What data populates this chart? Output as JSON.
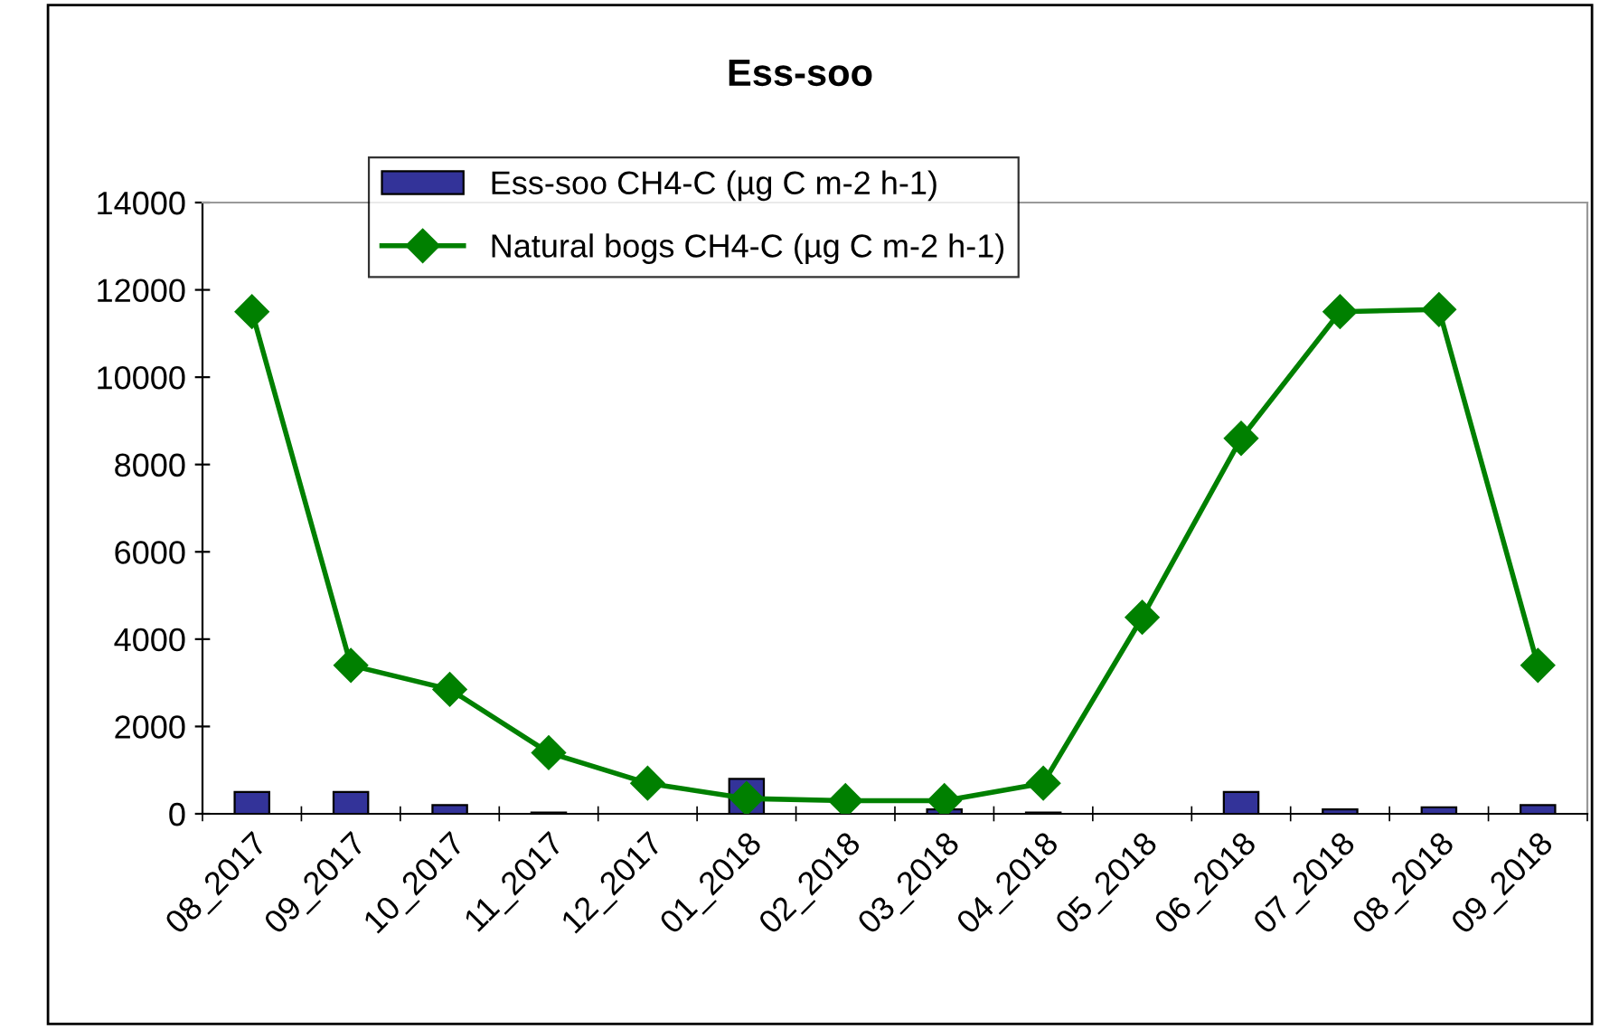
{
  "chart_data": {
    "type": "bar",
    "title": "Ess-soo",
    "categories": [
      "08_2017",
      "09_2017",
      "10_2017",
      "11_2017",
      "12_2017",
      "01_2018",
      "02_2018",
      "03_2018",
      "04_2018",
      "05_2018",
      "06_2018",
      "07_2018",
      "08_2018",
      "09_2018"
    ],
    "series": [
      {
        "name": "Ess-soo CH4-C (µg C m-2 h-1)",
        "color": "#333399",
        "values": [
          500,
          500,
          200,
          30,
          null,
          800,
          null,
          100,
          30,
          null,
          500,
          100,
          150,
          200
        ]
      },
      {
        "name": "Natural bogs CH4-C (µg C m-2 h-1)",
        "type": "line",
        "color": "#008000",
        "marker": "diamond",
        "values": [
          11500,
          3400,
          2850,
          1400,
          700,
          350,
          300,
          300,
          700,
          4500,
          8600,
          11500,
          11550,
          3400
        ]
      }
    ],
    "ylim": [
      0,
      14000
    ],
    "yticks": [
      0,
      2000,
      4000,
      6000,
      8000,
      10000,
      12000,
      14000
    ],
    "grid": false,
    "legend": "top"
  }
}
